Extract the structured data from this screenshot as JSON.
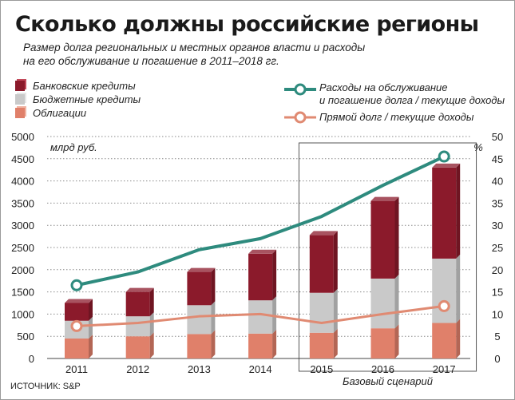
{
  "header": {
    "title": "Сколько должны российские регионы",
    "subtitle_line1": "Размер долга региональных и местных органов власти и расходы",
    "subtitle_line2": "на его обслуживание и погашение в 2011–2018 гг."
  },
  "legend": {
    "bank_credits": "Банковские кредиты",
    "budget_credits": "Бюджетные кредиты",
    "bonds": "Облигации",
    "service_line1": "Расходы на обслуживание",
    "service_line2": "и погашение долга / текущие доходы",
    "direct_debt": "Прямой долг / текущие доходы"
  },
  "axes": {
    "left_unit": "млрд руб.",
    "right_unit": "%",
    "scenario_label": "Базовый сценарий"
  },
  "source": "ИСТОЧНИК: S&P",
  "colors": {
    "bank": "#8b1a2b",
    "budget": "#c9c9c9",
    "bonds": "#e0806a",
    "service_line": "#2e8b7e",
    "direct_line": "#e08a72"
  },
  "chart_data": {
    "type": "bar",
    "categories": [
      "2011",
      "2012",
      "2013",
      "2014",
      "2015",
      "2016",
      "2017"
    ],
    "stacked": true,
    "series": [
      {
        "name": "Облигации",
        "axis": "left",
        "values": [
          450,
          500,
          550,
          560,
          580,
          680,
          800
        ]
      },
      {
        "name": "Бюджетные кредиты",
        "axis": "left",
        "values": [
          400,
          450,
          650,
          750,
          900,
          1120,
          1450
        ]
      },
      {
        "name": "Банковские кредиты",
        "axis": "left",
        "values": [
          400,
          550,
          750,
          1050,
          1300,
          1750,
          2050
        ]
      },
      {
        "name": "Расходы на обслуживание и погашение долга / текущие доходы",
        "type": "line",
        "axis": "right",
        "values": [
          16.5,
          19.5,
          24.5,
          27,
          32,
          39,
          45.5
        ]
      },
      {
        "name": "Прямой долг / текущие доходы",
        "type": "line",
        "axis": "right",
        "values": [
          7.3,
          8,
          9.5,
          10,
          8,
          10,
          11.8
        ]
      }
    ],
    "y_left": {
      "min": 0,
      "max": 5000,
      "ticks": [
        0,
        500,
        1000,
        1500,
        2000,
        2500,
        3000,
        3500,
        4000,
        4500,
        5000
      ]
    },
    "y_right": {
      "min": 0,
      "max": 50,
      "ticks": [
        0,
        5,
        10,
        15,
        20,
        25,
        30,
        35,
        40,
        45,
        50
      ]
    },
    "highlighted_categories": [
      "2015",
      "2016",
      "2017"
    ],
    "grid": "dotted horizontal",
    "legend_position": "top"
  }
}
